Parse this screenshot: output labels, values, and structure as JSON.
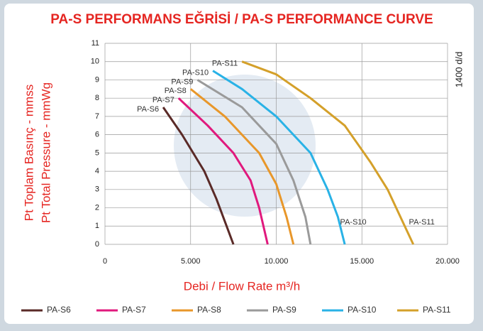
{
  "chart_data": {
    "type": "line",
    "title": "PA-S PERFORMANS EĞRİSİ / PA-S PERFORMANCE CURVE",
    "y_label": [
      "Pt Toplam Basınç - mmss",
      "Pt Total Pressure - mmWg"
    ],
    "y2_label": "1400 d/d",
    "x_label": "Debi / Flow Rate m³/h",
    "xlim": [
      0,
      20000
    ],
    "xticks": [
      0,
      {
        "value": 5000,
        "label": "5.000"
      },
      {
        "value": 10000,
        "label": "10.000"
      },
      {
        "value": 15000,
        "label": "15.000"
      },
      {
        "value": 20000,
        "label": "20.000"
      }
    ],
    "ylim": [
      0,
      11
    ],
    "yticks": [
      0,
      1,
      2,
      3,
      4,
      5,
      6,
      7,
      8,
      9,
      10,
      11
    ],
    "grid": true,
    "legend": "bottom",
    "series": [
      {
        "name": "PA-S6",
        "color": "#5a2a27",
        "x": [
          3400,
          4500,
          5800,
          6500,
          7100,
          7500
        ],
        "values": [
          7.5,
          6,
          4,
          2.5,
          1,
          0
        ]
      },
      {
        "name": "PA-S7",
        "color": "#e0197d",
        "x": [
          4300,
          6000,
          7500,
          8500,
          9000,
          9500
        ],
        "values": [
          8,
          6.5,
          5,
          3.5,
          2,
          0
        ]
      },
      {
        "name": "PA-S8",
        "color": "#e8972a",
        "x": [
          5000,
          7000,
          9000,
          10000,
          10600,
          11000
        ],
        "values": [
          8.5,
          7,
          5,
          3.3,
          1.5,
          0
        ]
      },
      {
        "name": "PA-S9",
        "color": "#9a9a9a",
        "x": [
          5400,
          8000,
          10000,
          11000,
          11700,
          12000
        ],
        "values": [
          9,
          7.5,
          5.5,
          3.5,
          1.5,
          0
        ]
      },
      {
        "name": "PA-S10",
        "color": "#29b2e6",
        "x": [
          6300,
          8000,
          10000,
          12000,
          13000,
          13600,
          14000
        ],
        "values": [
          9.5,
          8.5,
          7,
          5,
          3,
          1.5,
          0
        ],
        "end_label": true
      },
      {
        "name": "PA-S11",
        "color": "#d4a02a",
        "x": [
          8000,
          10000,
          12000,
          14000,
          15500,
          16500,
          17500,
          18000
        ],
        "values": [
          10,
          9.3,
          8,
          6.5,
          4.5,
          3,
          1,
          0
        ],
        "end_label": true
      }
    ]
  }
}
